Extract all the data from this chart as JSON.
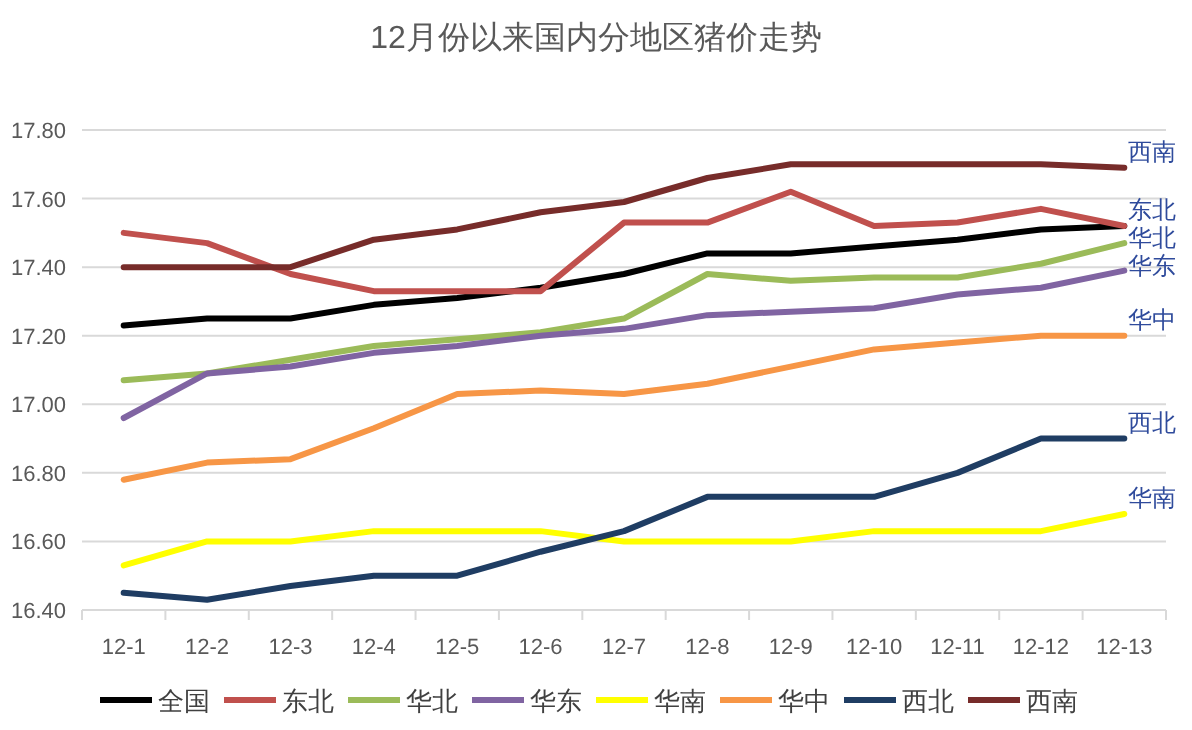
{
  "chart_data": {
    "type": "line",
    "title": "12月份以来国内分地区猪价走势",
    "categories": [
      "12-1",
      "12-2",
      "12-3",
      "12-4",
      "12-5",
      "12-6",
      "12-7",
      "12-8",
      "12-9",
      "12-10",
      "12-11",
      "12-12",
      "12-13"
    ],
    "series": [
      {
        "name": "全国",
        "color": "#000000",
        "values": [
          17.23,
          17.25,
          17.25,
          17.29,
          17.31,
          17.34,
          17.38,
          17.44,
          17.44,
          17.46,
          17.48,
          17.51,
          17.52
        ]
      },
      {
        "name": "东北",
        "color": "#c0504d",
        "values": [
          17.5,
          17.47,
          17.38,
          17.33,
          17.33,
          17.33,
          17.53,
          17.53,
          17.62,
          17.52,
          17.53,
          17.57,
          17.52
        ]
      },
      {
        "name": "华北",
        "color": "#9bbb59",
        "values": [
          17.07,
          17.09,
          17.13,
          17.17,
          17.19,
          17.21,
          17.25,
          17.38,
          17.36,
          17.37,
          17.37,
          17.41,
          17.47
        ]
      },
      {
        "name": "华东",
        "color": "#8064a2",
        "values": [
          16.96,
          17.09,
          17.11,
          17.15,
          17.17,
          17.2,
          17.22,
          17.26,
          17.27,
          17.28,
          17.32,
          17.34,
          17.39
        ]
      },
      {
        "name": "华南",
        "color": "#ffff00",
        "values": [
          16.53,
          16.6,
          16.6,
          16.63,
          16.63,
          16.63,
          16.6,
          16.6,
          16.6,
          16.63,
          16.63,
          16.63,
          16.68
        ]
      },
      {
        "name": "华中",
        "color": "#f79646",
        "values": [
          16.78,
          16.83,
          16.84,
          16.93,
          17.03,
          17.04,
          17.03,
          17.06,
          17.11,
          17.16,
          17.18,
          17.2,
          17.2
        ]
      },
      {
        "name": "西北",
        "color": "#1f3d63",
        "values": [
          16.45,
          16.43,
          16.47,
          16.5,
          16.5,
          16.57,
          16.63,
          16.73,
          16.73,
          16.73,
          16.8,
          16.9,
          16.9
        ]
      },
      {
        "name": "西南",
        "color": "#772c2a",
        "values": [
          17.4,
          17.4,
          17.4,
          17.48,
          17.51,
          17.56,
          17.59,
          17.66,
          17.7,
          17.7,
          17.7,
          17.7,
          17.69
        ]
      }
    ],
    "annotations": [
      {
        "text": "西南",
        "x": "12-13",
        "y": 17.69
      },
      {
        "text": "东北",
        "x": "12-13",
        "y": 17.52
      },
      {
        "text": "华北",
        "x": "12-13",
        "y": 17.47
      },
      {
        "text": "华东",
        "x": "12-13",
        "y": 17.39
      },
      {
        "text": "华中",
        "x": "12-13",
        "y": 17.2
      },
      {
        "text": "西北",
        "x": "12-13",
        "y": 16.9
      },
      {
        "text": "华南",
        "x": "12-13",
        "y": 16.68
      }
    ],
    "ylim": [
      16.4,
      17.8
    ],
    "yticks": [
      {
        "value": 16.4,
        "label": "16.40"
      },
      {
        "value": 16.6,
        "label": "16.60"
      },
      {
        "value": 16.8,
        "label": "16.80"
      },
      {
        "value": 17.0,
        "label": "17.00"
      },
      {
        "value": 17.2,
        "label": "17.20"
      },
      {
        "value": 17.4,
        "label": "17.40"
      },
      {
        "value": 17.6,
        "label": "17.60"
      },
      {
        "value": 17.8,
        "label": "17.80"
      }
    ],
    "grid": "y",
    "legend": "bottom",
    "marker": "none",
    "line_style": "solid"
  }
}
